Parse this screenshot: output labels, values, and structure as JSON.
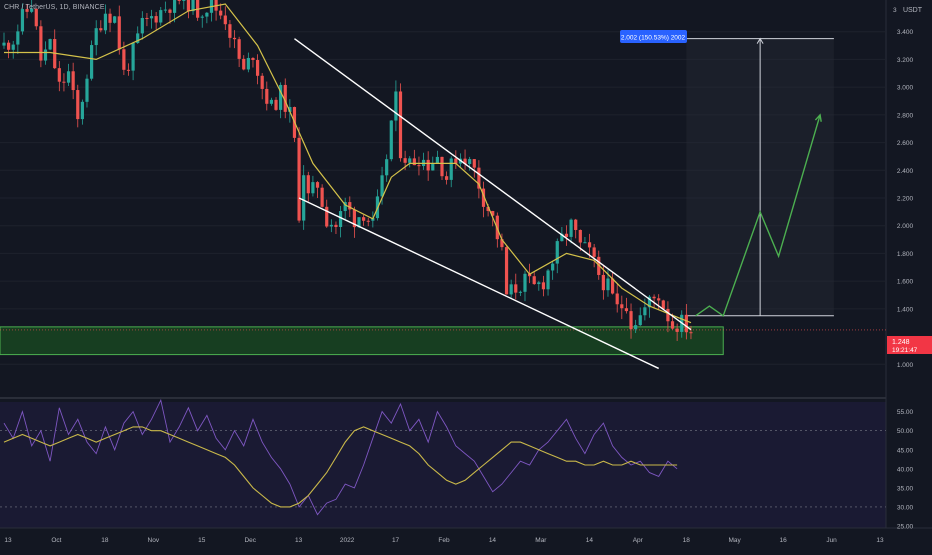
{
  "header": {
    "symbol_line": "CHR / TetherUS, 1D, BINANCE"
  },
  "price_axis": {
    "currency": "USDT",
    "top_partial": "3",
    "ticks": [
      "3.400",
      "3.200",
      "3.000",
      "2.800",
      "2.600",
      "2.400",
      "2.200",
      "2.000",
      "1.800",
      "1.600",
      "1.400",
      "1.000"
    ],
    "last_price": "1.248",
    "countdown": "19:21:47"
  },
  "rsi_axis": {
    "ticks": [
      "55.00",
      "50.00",
      "45.00",
      "40.00",
      "35.00",
      "30.00",
      "25.00"
    ]
  },
  "time_axis": {
    "ticks": [
      "13",
      "Oct",
      "18",
      "Nov",
      "15",
      "Dec",
      "13",
      "2022",
      "17",
      "Feb",
      "14",
      "Mar",
      "14",
      "Apr",
      "18",
      "May",
      "16",
      "Jun",
      "13"
    ]
  },
  "projection": {
    "label": "2.002 (150.53%) 2002"
  },
  "colors": {
    "background": "#131722",
    "bull": "#26a69a",
    "bear": "#ef5350",
    "ema": "#d4c24a",
    "support_zone": "#1b5e20",
    "projection_arrow": "#4caf50",
    "rsi_line": "#7e57c2",
    "rsi_signal": "#c9b84a",
    "label_bg": "#2962ff",
    "price_tag": "#f23645"
  },
  "chart_data": [
    {
      "type": "candlestick",
      "title": "CHR / TetherUS, 1D, BINANCE",
      "xlabel": "",
      "ylabel": "USDT",
      "x_ticks": [
        "13",
        "Oct",
        "18",
        "Nov",
        "15",
        "Dec",
        "13",
        "2022",
        "17",
        "Feb",
        "14",
        "Mar",
        "14",
        "Apr",
        "18",
        "May",
        "16",
        "Jun",
        "13"
      ],
      "ylim": [
        0.8,
        3.6
      ],
      "y_ticks": [
        1.0,
        1.4,
        1.6,
        1.8,
        2.0,
        2.2,
        2.4,
        2.6,
        2.8,
        3.0,
        3.2,
        3.4
      ],
      "last_price": 1.248,
      "series": [
        {
          "name": "",
          "type": "ohlc_path",
          "points": [
            [
              0,
              3.3
            ],
            [
              4,
              3.35
            ],
            [
              8,
              3.5
            ],
            [
              12,
              3.6
            ],
            [
              16,
              3.2
            ],
            [
              20,
              3.3
            ],
            [
              24,
              3.0
            ],
            [
              28,
              3.1
            ],
            [
              32,
              2.75
            ],
            [
              36,
              3.1
            ],
            [
              40,
              3.4
            ],
            [
              44,
              3.55
            ],
            [
              48,
              3.5
            ],
            [
              52,
              3.1
            ],
            [
              56,
              3.25
            ],
            [
              60,
              3.45
            ],
            [
              64,
              3.5
            ],
            [
              68,
              3.55
            ],
            [
              72,
              3.6
            ],
            [
              78,
              3.65
            ],
            [
              84,
              3.55
            ],
            [
              90,
              3.6
            ],
            [
              96,
              3.5
            ],
            [
              100,
              3.3
            ],
            [
              104,
              3.1
            ],
            [
              108,
              3.25
            ],
            [
              112,
              3.0
            ],
            [
              116,
              2.85
            ],
            [
              120,
              2.95
            ],
            [
              124,
              2.8
            ],
            [
              126,
              2.6
            ],
            [
              128,
              2.1
            ],
            [
              130,
              2.4
            ],
            [
              132,
              2.2
            ],
            [
              136,
              2.3
            ],
            [
              140,
              2.05
            ],
            [
              144,
              2.0
            ],
            [
              148,
              2.15
            ],
            [
              152,
              2.05
            ],
            [
              156,
              2.1
            ],
            [
              160,
              2.0
            ],
            [
              164,
              2.3
            ],
            [
              166,
              2.5
            ],
            [
              168,
              2.75
            ],
            [
              170,
              2.9
            ],
            [
              172,
              2.55
            ],
            [
              176,
              2.45
            ],
            [
              180,
              2.5
            ],
            [
              184,
              2.45
            ],
            [
              188,
              2.5
            ],
            [
              192,
              2.35
            ],
            [
              196,
              2.5
            ],
            [
              200,
              2.5
            ],
            [
              204,
              2.4
            ],
            [
              208,
              2.2
            ],
            [
              212,
              2.05
            ],
            [
              216,
              1.8
            ],
            [
              218,
              1.5
            ],
            [
              222,
              1.55
            ],
            [
              226,
              1.6
            ],
            [
              230,
              1.55
            ],
            [
              234,
              1.6
            ],
            [
              238,
              1.75
            ],
            [
              242,
              1.9
            ],
            [
              246,
              2.0
            ],
            [
              250,
              1.85
            ],
            [
              254,
              1.8
            ],
            [
              258,
              1.65
            ],
            [
              262,
              1.55
            ],
            [
              266,
              1.4
            ],
            [
              270,
              1.45
            ],
            [
              272,
              1.3
            ],
            [
              276,
              1.35
            ],
            [
              280,
              1.45
            ],
            [
              284,
              1.5
            ],
            [
              288,
              1.35
            ],
            [
              290,
              1.28
            ],
            [
              294,
              1.3
            ],
            [
              298,
              1.25
            ]
          ]
        },
        {
          "name": "",
          "type": "moving_average",
          "points": [
            [
              0,
              3.25
            ],
            [
              20,
              3.25
            ],
            [
              40,
              3.2
            ],
            [
              60,
              3.35
            ],
            [
              80,
              3.55
            ],
            [
              96,
              3.6
            ],
            [
              110,
              3.3
            ],
            [
              122,
              2.9
            ],
            [
              134,
              2.45
            ],
            [
              148,
              2.15
            ],
            [
              160,
              2.05
            ],
            [
              168,
              2.35
            ],
            [
              176,
              2.45
            ],
            [
              186,
              2.45
            ],
            [
              196,
              2.45
            ],
            [
              206,
              2.3
            ],
            [
              216,
              1.9
            ],
            [
              228,
              1.65
            ],
            [
              244,
              1.8
            ],
            [
              256,
              1.75
            ],
            [
              268,
              1.55
            ],
            [
              280,
              1.42
            ],
            [
              298,
              1.3
            ]
          ]
        }
      ],
      "annotations": {
        "falling_wedge_upper": [
          [
            126,
            3.35
          ],
          [
            298,
            1.25
          ]
        ],
        "falling_wedge_lower": [
          [
            128,
            2.2
          ],
          [
            284,
            0.97
          ]
        ],
        "support_zone": [
          1.07,
          1.27
        ],
        "projection_box": {
          "x": [
            296,
            360
          ],
          "y": [
            1.35,
            3.35
          ]
        },
        "projection_label": "2.002 (150.53%) 2002",
        "projection_path": [
          [
            300,
            1.35
          ],
          [
            306,
            1.42
          ],
          [
            312,
            1.35
          ],
          [
            328,
            2.1
          ],
          [
            336,
            1.78
          ],
          [
            354,
            2.8
          ]
        ]
      }
    },
    {
      "type": "line",
      "title": "",
      "ylim": [
        25,
        57
      ],
      "y_ticks": [
        25,
        30,
        35,
        40,
        45,
        50,
        55
      ],
      "reference_lines": [
        30,
        50
      ],
      "series": [
        {
          "name": "",
          "values": [
            52,
            48,
            55,
            46,
            50,
            42,
            56,
            49,
            53,
            47,
            44,
            51,
            45,
            52,
            55,
            49,
            53,
            58,
            47,
            51,
            56,
            50,
            54,
            48,
            45,
            50,
            46,
            53,
            47,
            43,
            40,
            36,
            30,
            33,
            28,
            31,
            32,
            36,
            35,
            41,
            48,
            55,
            52,
            57,
            50,
            53,
            47,
            55,
            51,
            46,
            44,
            42,
            38,
            34,
            36,
            39,
            42,
            41,
            45,
            47,
            50,
            53,
            48,
            44,
            49,
            52,
            46,
            43,
            41,
            42,
            39,
            38,
            42,
            40
          ]
        },
        {
          "name": "",
          "values": [
            47,
            48,
            49,
            48,
            47,
            46,
            47,
            48,
            49,
            48,
            47,
            48,
            49,
            50,
            51,
            51,
            50,
            50,
            49,
            48,
            47,
            46,
            45,
            44,
            43,
            41,
            38,
            35,
            33,
            31,
            30,
            30,
            31,
            33,
            36,
            39,
            43,
            47,
            50,
            51,
            50,
            49,
            48,
            47,
            46,
            44,
            41,
            39,
            37,
            36,
            37,
            39,
            41,
            43,
            45,
            47,
            47,
            46,
            45,
            44,
            43,
            42,
            42,
            41,
            41,
            42,
            41,
            41,
            42,
            41,
            41,
            41,
            41,
            41
          ]
        }
      ],
      "trendline": [
        [
          27,
          32.5
        ],
        [
          37,
          40.5
        ]
      ]
    }
  ]
}
